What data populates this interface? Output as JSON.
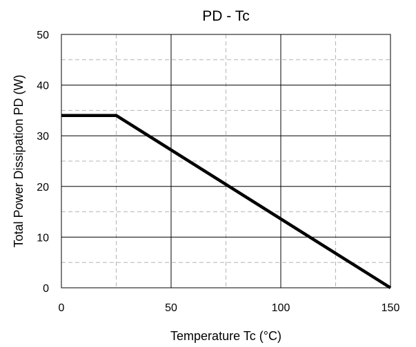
{
  "chart_data": {
    "type": "line",
    "title": "PD - Tc",
    "xlabel": "Temperature Tc (°C)",
    "ylabel": "Total Power Dissipation PD (W)",
    "xlim": [
      0,
      150
    ],
    "ylim": [
      0,
      50
    ],
    "x_ticks": [
      0,
      50,
      100,
      150
    ],
    "y_ticks": [
      0,
      10,
      20,
      30,
      40,
      50
    ],
    "x_minor_grid": [
      25,
      75,
      125
    ],
    "y_minor_grid": [
      5,
      15,
      25,
      35,
      45
    ],
    "grid": true,
    "legend": "none",
    "series": [
      {
        "x": [
          0,
          25,
          150
        ],
        "y": [
          34,
          34,
          0
        ],
        "color": "#000000"
      }
    ]
  }
}
